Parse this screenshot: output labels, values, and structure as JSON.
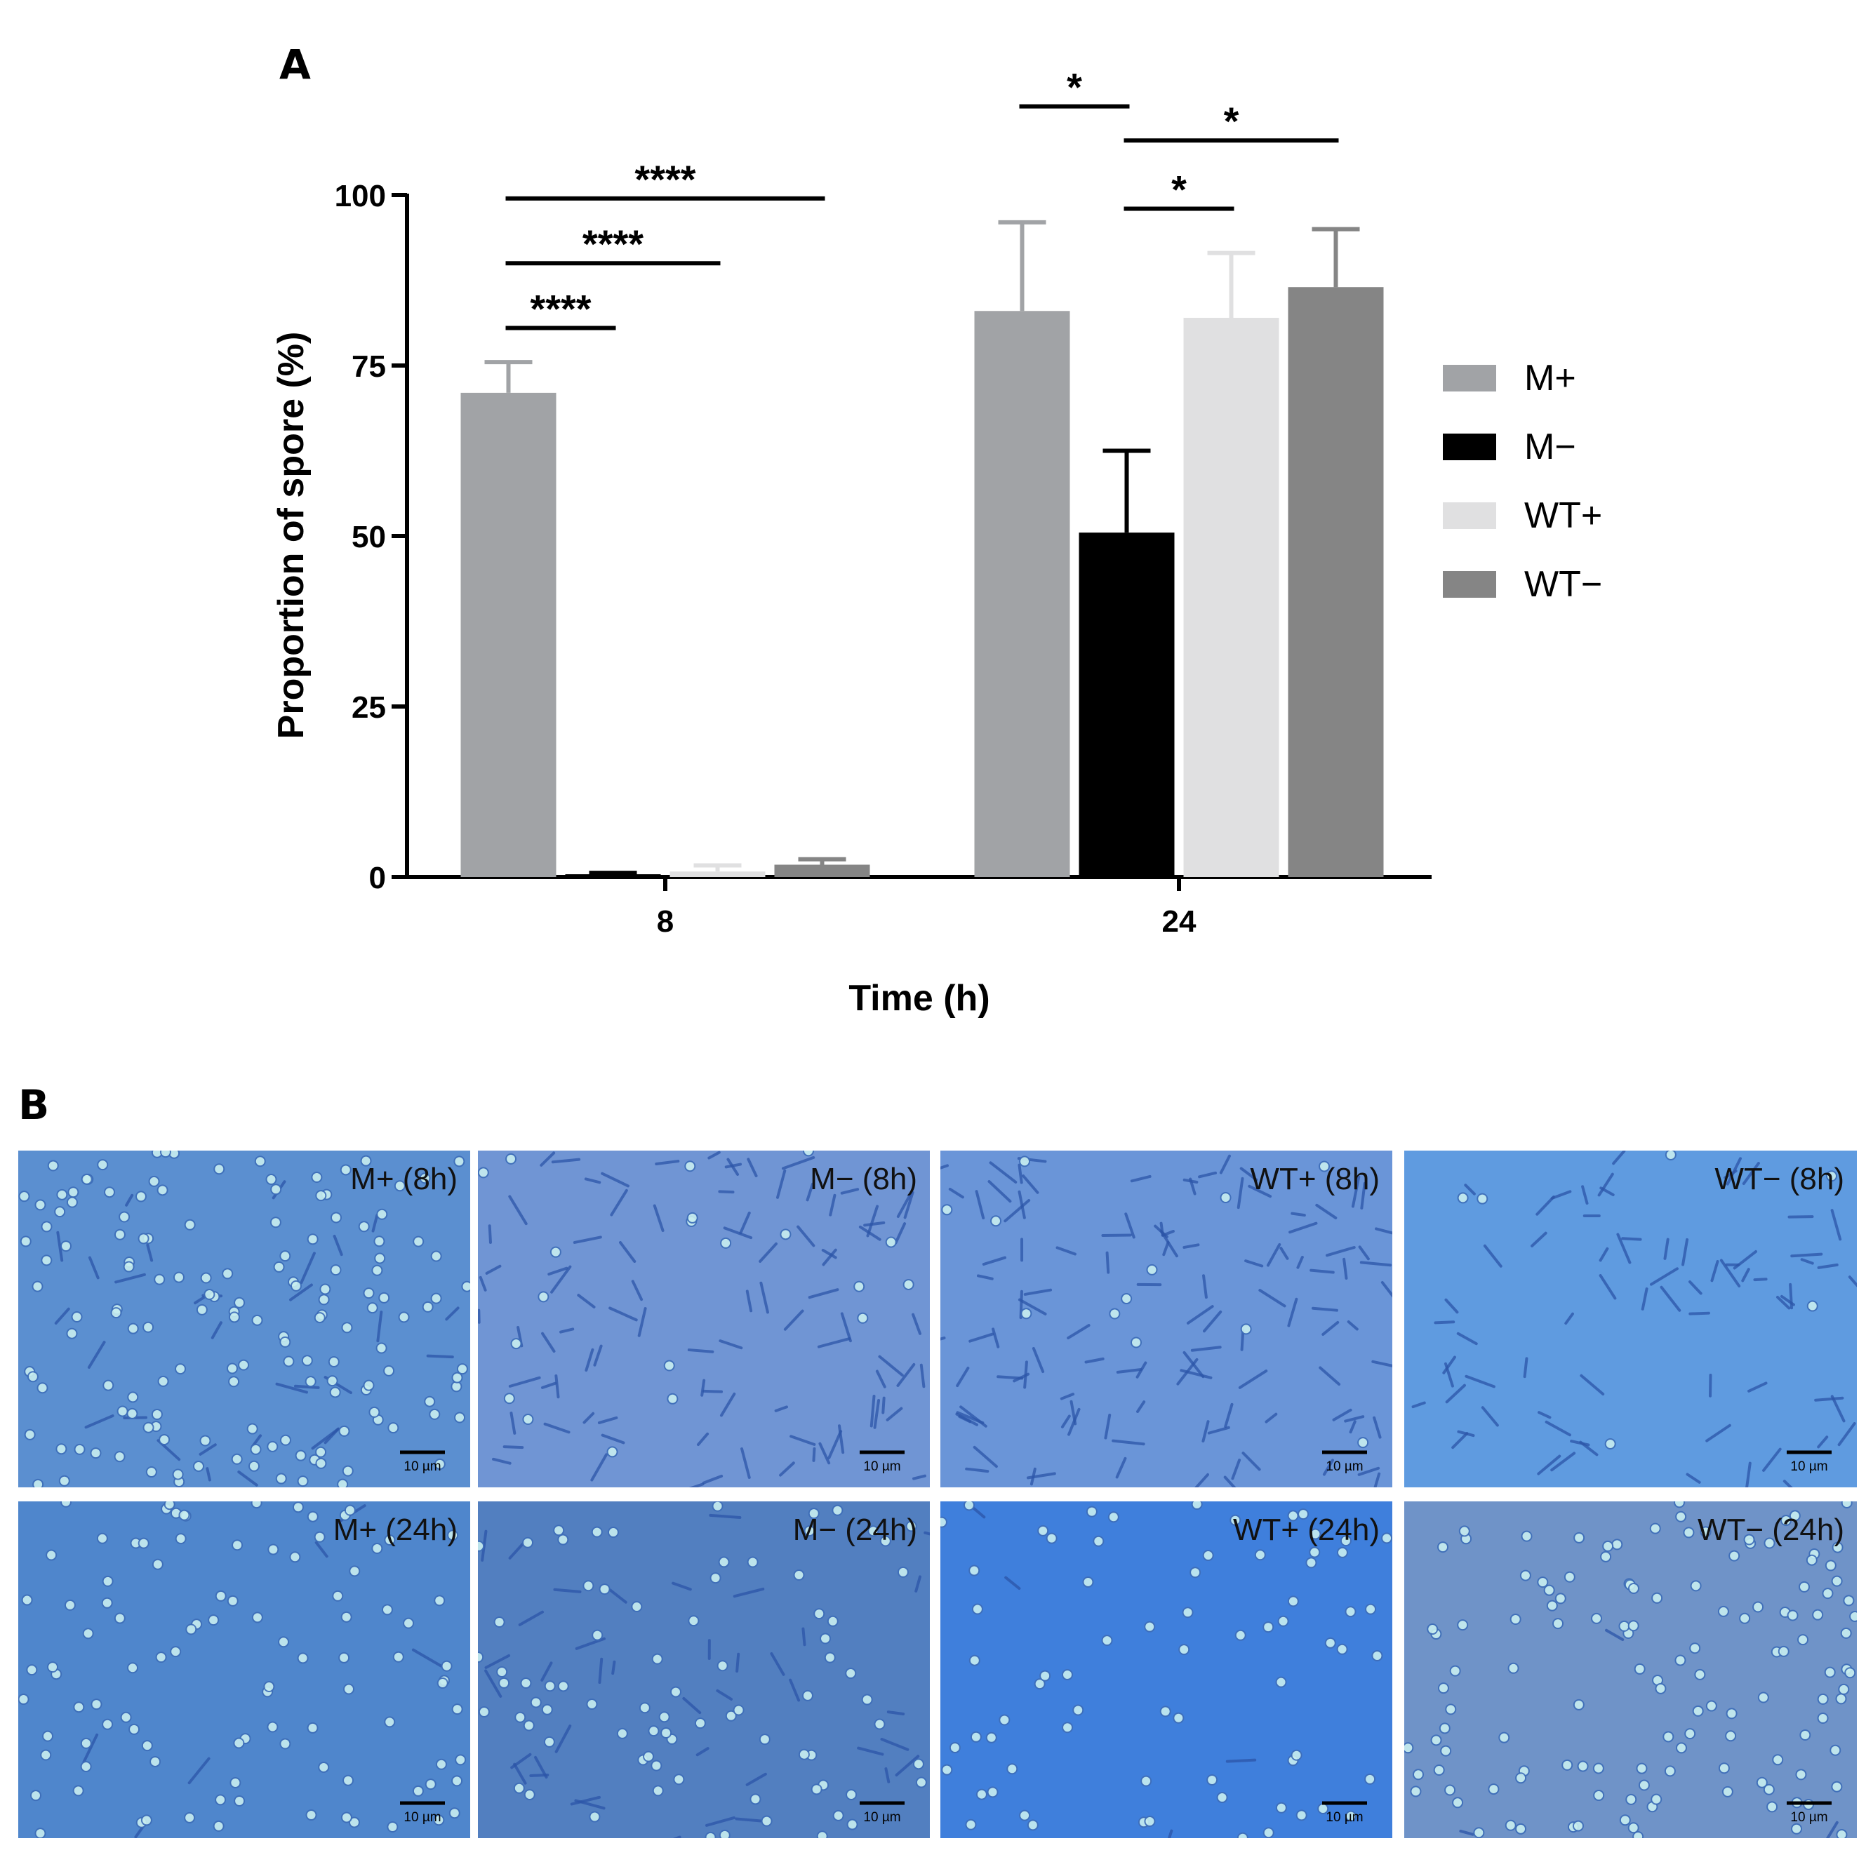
{
  "panels": {
    "a_label": "A",
    "b_label": "B"
  },
  "chart_data": {
    "type": "bar",
    "title": "",
    "xlabel": "Time (h)",
    "ylabel": "Proportion of spore (%)",
    "categories": [
      "8",
      "24"
    ],
    "ylim": [
      0,
      100
    ],
    "yticks": [
      "0",
      "25",
      "50",
      "75",
      "100"
    ],
    "grid": false,
    "legend_position": "right",
    "series": [
      {
        "name": "M+",
        "color": "#a1a3a6",
        "values": [
          71,
          83
        ],
        "errors": [
          4.5,
          13
        ]
      },
      {
        "name": "M−",
        "color": "#000000",
        "values": [
          0.4,
          50.5
        ],
        "errors": [
          0.2,
          12
        ]
      },
      {
        "name": "WT+",
        "color": "#e0e0e1",
        "values": [
          0.8,
          82
        ],
        "errors": [
          0.9,
          9.5
        ]
      },
      {
        "name": "WT−",
        "color": "#858585",
        "values": [
          1.8,
          86.5
        ],
        "errors": [
          0.8,
          8.5
        ]
      }
    ],
    "significance": [
      {
        "category": "8",
        "from": "M+",
        "to": "M−",
        "label": "****",
        "level": 80.5
      },
      {
        "category": "8",
        "from": "M+",
        "to": "WT+",
        "label": "****",
        "level": 90
      },
      {
        "category": "8",
        "from": "M+",
        "to": "WT−",
        "label": "****",
        "level": 99.5
      },
      {
        "category": "24",
        "from": "M+",
        "to": "M−",
        "label": "*",
        "level": 113
      },
      {
        "category": "24",
        "from": "M−",
        "to": "WT−",
        "label": "*",
        "level": 108
      },
      {
        "category": "24",
        "from": "M−",
        "to": "WT+",
        "label": "*",
        "level": 98
      }
    ]
  },
  "micrographs": [
    {
      "label": "M+ (8h)",
      "scale": "10 µm",
      "bg": "#5b8fd0",
      "spores": 150,
      "rods": 30
    },
    {
      "label": "M− (8h)",
      "scale": "10 µm",
      "bg": "#7095d4",
      "spores": 20,
      "rods": 90
    },
    {
      "label": "WT+ (8h)",
      "scale": "10 µm",
      "bg": "#6a95d8",
      "spores": 12,
      "rods": 110
    },
    {
      "label": "WT− (8h)",
      "scale": "10 µm",
      "bg": "#5f9be0",
      "spores": 6,
      "rods": 70
    },
    {
      "label": "M+ (24h)",
      "scale": "10 µm",
      "bg": "#4f86cc",
      "spores": 100,
      "rods": 6
    },
    {
      "label": "M− (24h)",
      "scale": "10 µm",
      "bg": "#527fc0",
      "spores": 80,
      "rods": 40
    },
    {
      "label": "WT+ (24h)",
      "scale": "10 µm",
      "bg": "#3f7fdc",
      "spores": 70,
      "rods": 4
    },
    {
      "label": "WT− (24h)",
      "scale": "10 µm",
      "bg": "#6f93c8",
      "spores": 130,
      "rods": 3
    }
  ]
}
